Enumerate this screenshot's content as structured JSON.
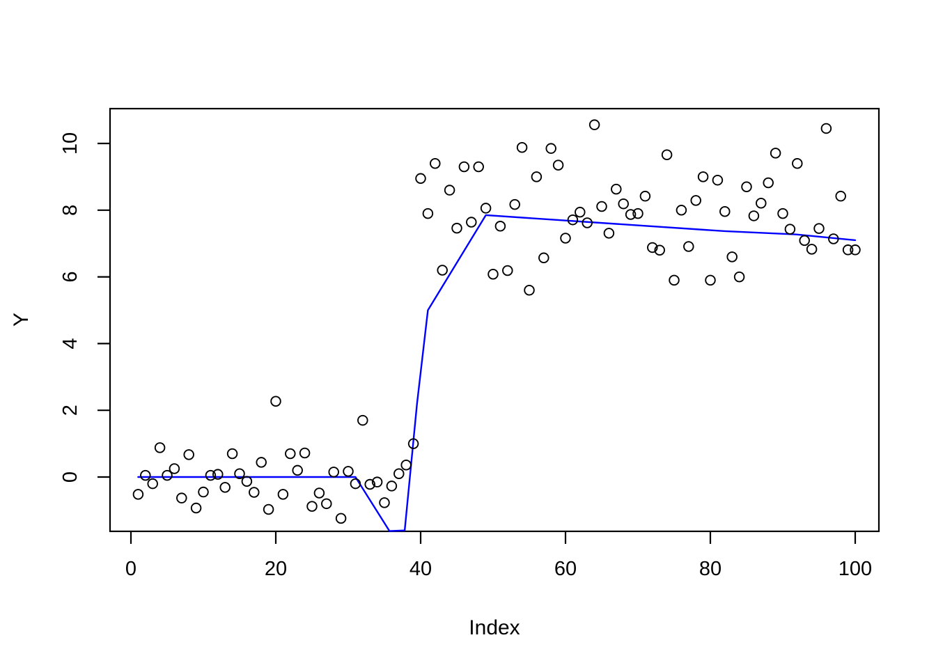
{
  "figure": {
    "background": "#ffffff",
    "plot_bg": "#ffffff",
    "box_color": "#000000"
  },
  "chart_data": {
    "type": "scatter",
    "title": "",
    "xlabel": "Index",
    "ylabel": "Y",
    "x_ticks": [
      0,
      20,
      40,
      60,
      80,
      100
    ],
    "y_ticks": [
      0,
      2,
      4,
      6,
      8,
      10
    ],
    "xlim": [
      -2.98,
      103.4
    ],
    "ylim": [
      -1.68,
      11.09
    ],
    "grid": false,
    "legend": "none",
    "point_color": "#000000",
    "point_style": "open-circle",
    "line_color": "#0000ff",
    "series": [
      {
        "name": "observations",
        "type": "points",
        "x": [
          1,
          2,
          3,
          4,
          5,
          6,
          7,
          8,
          9,
          10,
          11,
          12,
          13,
          14,
          15,
          16,
          17,
          18,
          19,
          20,
          21,
          22,
          23,
          24,
          25,
          26,
          27,
          28,
          29,
          30,
          31,
          32,
          33,
          34,
          35,
          36,
          37,
          38,
          39,
          40,
          41,
          42,
          43,
          44,
          45,
          46,
          47,
          48,
          49,
          50,
          51,
          52,
          53,
          54,
          55,
          56,
          57,
          58,
          59,
          60,
          61,
          62,
          63,
          64,
          65,
          66,
          67,
          68,
          69,
          70,
          71,
          72,
          73,
          74,
          75,
          76,
          77,
          78,
          79,
          80,
          81,
          82,
          83,
          84,
          85,
          86,
          87,
          88,
          89,
          90,
          91,
          92,
          93,
          94,
          95,
          96,
          97,
          98,
          99,
          100
        ],
        "y": [
          -0.52,
          0.05,
          -0.2,
          0.88,
          0.05,
          0.25,
          -0.63,
          0.67,
          -0.93,
          -0.45,
          0.05,
          0.08,
          -0.31,
          0.7,
          0.1,
          -0.13,
          -0.46,
          0.44,
          -0.97,
          2.27,
          -0.52,
          0.7,
          0.2,
          0.72,
          -0.88,
          -0.48,
          -0.8,
          0.15,
          -1.24,
          0.17,
          -0.2,
          1.7,
          -0.22,
          -0.15,
          -0.77,
          -0.27,
          0.1,
          0.36,
          1.0,
          8.95,
          7.9,
          9.4,
          6.2,
          8.6,
          7.46,
          9.3,
          7.64,
          9.3,
          8.06,
          6.08,
          7.52,
          6.19,
          8.17,
          9.88,
          5.6,
          9.0,
          6.57,
          9.85,
          9.35,
          7.16,
          7.71,
          7.94,
          7.62,
          10.56,
          8.11,
          7.31,
          8.63,
          8.19,
          7.87,
          7.9,
          8.42,
          6.88,
          6.8,
          9.66,
          5.9,
          8.0,
          6.91,
          8.29,
          9.0,
          5.9,
          8.9,
          7.96,
          6.6,
          6.0,
          8.7,
          7.83,
          8.21,
          8.82,
          9.71,
          7.9,
          7.43,
          9.4,
          7.09,
          6.83,
          7.45,
          10.45,
          7.14,
          8.42,
          6.81,
          6.81
        ]
      },
      {
        "name": "fit-line",
        "type": "line",
        "x": [
          1,
          31,
          35.7,
          37.8,
          39.5,
          41,
          49,
          82,
          92,
          100
        ],
        "y": [
          0,
          0,
          -1.62,
          -1.6,
          2.2,
          5.0,
          7.85,
          7.37,
          7.27,
          7.1
        ]
      }
    ]
  }
}
